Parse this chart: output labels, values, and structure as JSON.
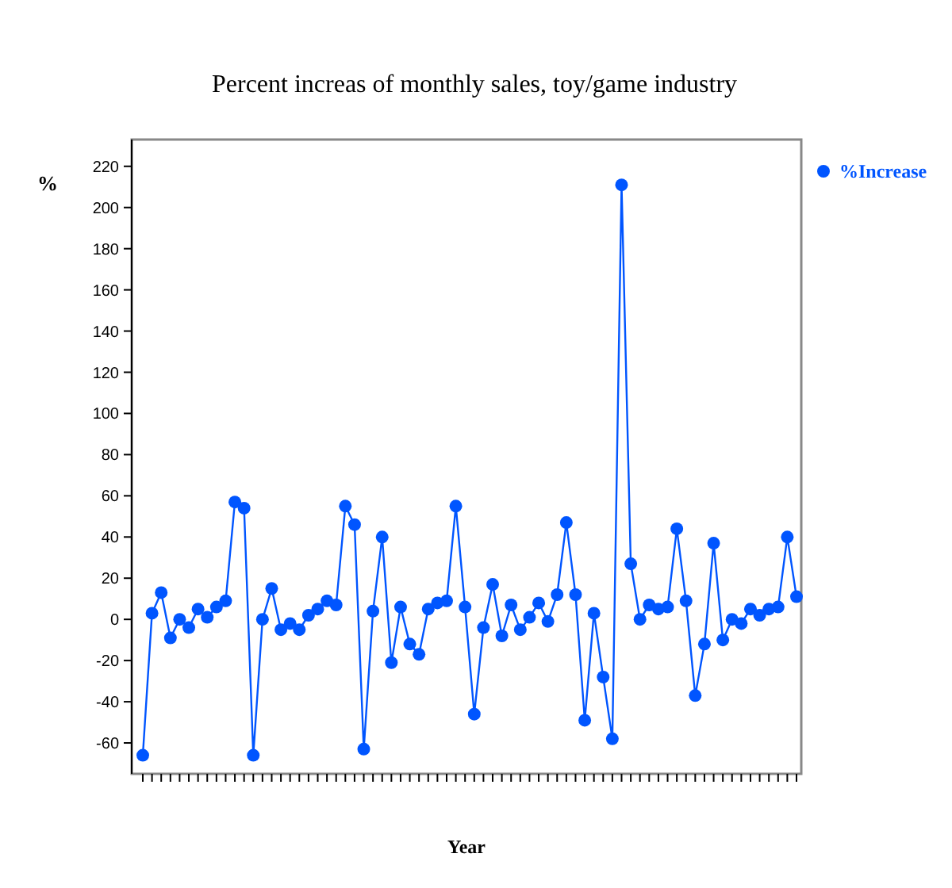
{
  "chart_data": {
    "type": "line",
    "title": "Percent increas of monthly sales, toy/game industry",
    "xlabel": "Year",
    "ylabel": "%",
    "categories": [
      null,
      null,
      null,
      null,
      null,
      null,
      null,
      null,
      null,
      null,
      null,
      null,
      null,
      null,
      null,
      null,
      null,
      null,
      null,
      null,
      null,
      null,
      null,
      null,
      null,
      null,
      null,
      null,
      null,
      null,
      null,
      null,
      null,
      null,
      null,
      null,
      null,
      null,
      null,
      null,
      null,
      null,
      null,
      null,
      null,
      null,
      null,
      null,
      null,
      null,
      null,
      null,
      null,
      null,
      null,
      null,
      null,
      null,
      null,
      null,
      null,
      null,
      null,
      null,
      null,
      null,
      null,
      null,
      null,
      null,
      null,
      null
    ],
    "series": [
      {
        "name": "%Increase",
        "color": "#0055ff",
        "values": [
          -66,
          3,
          13,
          -9,
          0,
          -4,
          5,
          1,
          6,
          9,
          57,
          54,
          -66,
          0,
          15,
          -5,
          -2,
          -5,
          2,
          5,
          9,
          7,
          55,
          46,
          -63,
          4,
          40,
          -21,
          6,
          -12,
          -17,
          5,
          8,
          9,
          55,
          6,
          -46,
          -4,
          17,
          -8,
          7,
          -5,
          1,
          8,
          -1,
          12,
          47,
          12,
          -49,
          3,
          -28,
          -58,
          211,
          27,
          0,
          7,
          5,
          6,
          44,
          9,
          -37,
          -12,
          37,
          -10,
          0,
          -2,
          5,
          2,
          5,
          6,
          40,
          11
        ]
      }
    ],
    "ylim": [
      -75,
      233
    ],
    "yticks": [
      -60,
      -40,
      -20,
      0,
      20,
      40,
      60,
      80,
      100,
      120,
      140,
      160,
      180,
      200,
      220
    ],
    "legend": "top right",
    "marker": "circle",
    "line_style": "solid",
    "grid": false
  }
}
